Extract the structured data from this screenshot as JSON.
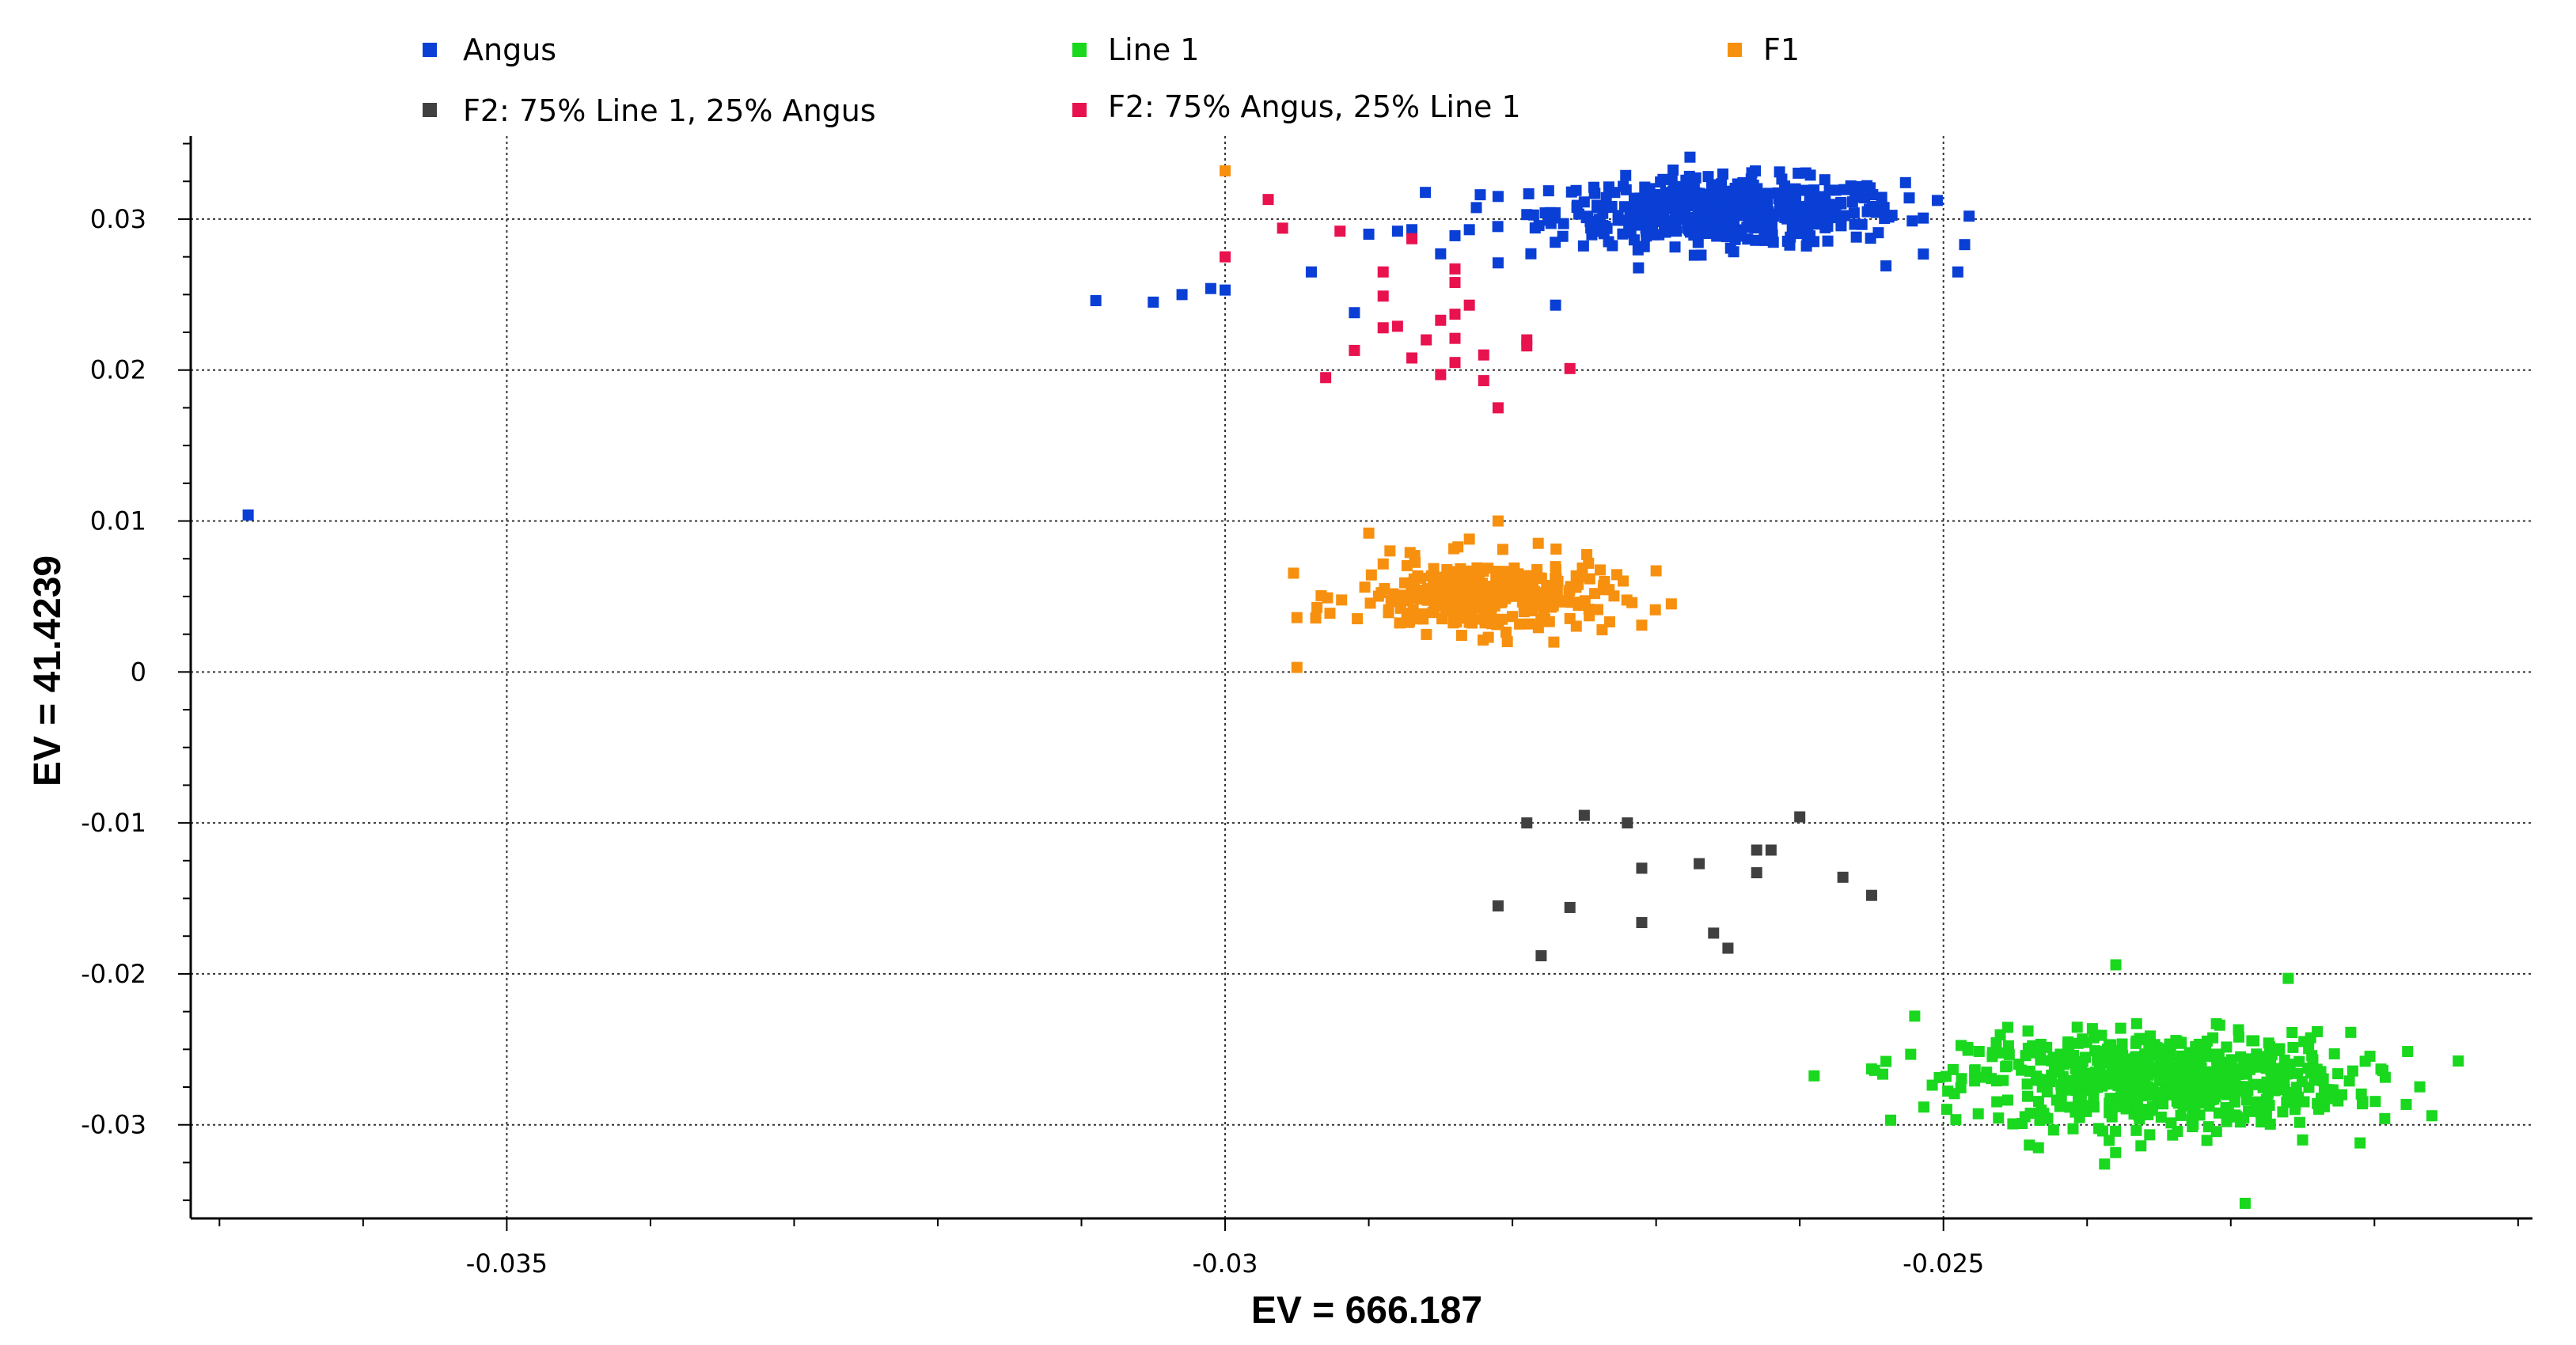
{
  "chart_data": {
    "type": "scatter",
    "title": "",
    "xlabel": "EV = 666.187",
    "ylabel": "EV = 41.4239",
    "xlim": [
      -0.0372,
      -0.0209
    ],
    "ylim": [
      -0.0362,
      0.0355
    ],
    "x_ticks": [
      -0.035,
      -0.03,
      -0.025
    ],
    "x_tick_labels": [
      "-0.035",
      "-0.03",
      "-0.025"
    ],
    "y_ticks": [
      -0.03,
      -0.02,
      -0.01,
      0,
      0.01,
      0.02,
      0.03
    ],
    "y_tick_labels": [
      "-0.03",
      "-0.02",
      "-0.01",
      "0",
      "0.01",
      "0.02",
      "0.03"
    ],
    "grid": true,
    "legend_position": "top",
    "series": [
      {
        "name": "Angus",
        "color": "#0A3FD6",
        "points": [
          [
            -0.0368,
            0.0104
          ],
          [
            -0.0309,
            0.0246
          ],
          [
            -0.0305,
            0.0245
          ],
          [
            -0.0303,
            0.025
          ],
          [
            -0.0301,
            0.0254
          ],
          [
            -0.03,
            0.0253
          ],
          [
            -0.0294,
            0.0265
          ],
          [
            -0.0291,
            0.0238
          ],
          [
            -0.029,
            0.029
          ],
          [
            -0.0288,
            0.0292
          ],
          [
            -0.0287,
            0.0293
          ],
          [
            -0.0285,
            0.0277
          ],
          [
            -0.0284,
            0.0289
          ],
          [
            -0.0283,
            0.0293
          ],
          [
            -0.0281,
            0.0271
          ],
          [
            -0.0281,
            0.0315
          ],
          [
            -0.0279,
            0.0303
          ],
          [
            -0.0277,
            0.0243
          ],
          [
            -0.0249,
            0.0265
          ],
          [
            -0.0254,
            0.0269
          ]
        ],
        "cluster": {
          "center": [
            -0.0265,
            0.0305
          ],
          "spread": [
            0.0011,
            0.002
          ],
          "count": 520
        }
      },
      {
        "name": "Line 1",
        "color": "#19D81E",
        "points": [
          [
            -0.0231,
            -0.0233
          ],
          [
            -0.0226,
            -0.0203
          ],
          [
            -0.0221,
            -0.0312
          ],
          [
            -0.0225,
            -0.031
          ],
          [
            -0.0216,
            -0.0294
          ],
          [
            -0.0254,
            -0.0258
          ],
          [
            -0.0255,
            -0.0263
          ],
          [
            -0.0252,
            -0.0228
          ],
          [
            -0.0238,
            -0.0194
          ],
          [
            -0.0229,
            -0.0352
          ],
          [
            -0.023,
            -0.0265
          ]
        ],
        "cluster": {
          "center": [
            -0.0235,
            -0.027
          ],
          "spread": [
            0.0012,
            0.0028
          ],
          "count": 650
        }
      },
      {
        "name": "F1",
        "color": "#F7900E",
        "points": [
          [
            -0.03,
            0.0332
          ],
          [
            -0.0295,
            0.0036
          ],
          [
            -0.0295,
            0.0003
          ],
          [
            -0.0278,
            0.0048
          ],
          [
            -0.027,
            0.0067
          ],
          [
            -0.0271,
            0.0031
          ],
          [
            -0.0283,
            0.0088
          ],
          [
            -0.029,
            0.0092
          ],
          [
            -0.0281,
            0.01
          ]
        ],
        "cluster": {
          "center": [
            -0.0282,
            0.005
          ],
          "spread": [
            0.0008,
            0.0022
          ],
          "count": 300
        }
      },
      {
        "name": "F2: 75% Line 1, 25% Angus",
        "color": "#404040",
        "points": [
          [
            -0.0279,
            -0.01
          ],
          [
            -0.0275,
            -0.0095
          ],
          [
            -0.0272,
            -0.01
          ],
          [
            -0.026,
            -0.0096
          ],
          [
            -0.0281,
            -0.0155
          ],
          [
            -0.0276,
            -0.0156
          ],
          [
            -0.0271,
            -0.013
          ],
          [
            -0.0271,
            -0.0166
          ],
          [
            -0.0267,
            -0.0127
          ],
          [
            -0.0263,
            -0.0133
          ],
          [
            -0.0263,
            -0.0118
          ],
          [
            -0.0262,
            -0.0118
          ],
          [
            -0.0266,
            -0.0173
          ],
          [
            -0.0265,
            -0.0183
          ],
          [
            -0.0278,
            -0.0188
          ],
          [
            -0.0257,
            -0.0136
          ],
          [
            -0.0255,
            -0.0148
          ]
        ],
        "cluster": null
      },
      {
        "name": "F2: 75% Angus, 25% Line 1",
        "color": "#E8124E",
        "points": [
          [
            -0.0297,
            0.0313
          ],
          [
            -0.0296,
            0.0294
          ],
          [
            -0.03,
            0.0275
          ],
          [
            -0.0292,
            0.0292
          ],
          [
            -0.0289,
            0.0265
          ],
          [
            -0.0289,
            0.0249
          ],
          [
            -0.0287,
            0.0287
          ],
          [
            -0.0289,
            0.0228
          ],
          [
            -0.0286,
            0.022
          ],
          [
            -0.0287,
            0.0208
          ],
          [
            -0.0288,
            0.0229
          ],
          [
            -0.0291,
            0.0213
          ],
          [
            -0.0293,
            0.0195
          ],
          [
            -0.0284,
            0.0267
          ],
          [
            -0.0284,
            0.0258
          ],
          [
            -0.0284,
            0.0237
          ],
          [
            -0.0284,
            0.0205
          ],
          [
            -0.0282,
            0.0193
          ],
          [
            -0.0282,
            0.021
          ],
          [
            -0.0281,
            0.0175
          ],
          [
            -0.0279,
            0.022
          ],
          [
            -0.0279,
            0.0216
          ],
          [
            -0.0276,
            0.0201
          ],
          [
            -0.0283,
            0.0243
          ],
          [
            -0.0285,
            0.0233
          ],
          [
            -0.0285,
            0.0197
          ],
          [
            -0.0284,
            0.0221
          ]
        ],
        "cluster": null
      }
    ]
  }
}
